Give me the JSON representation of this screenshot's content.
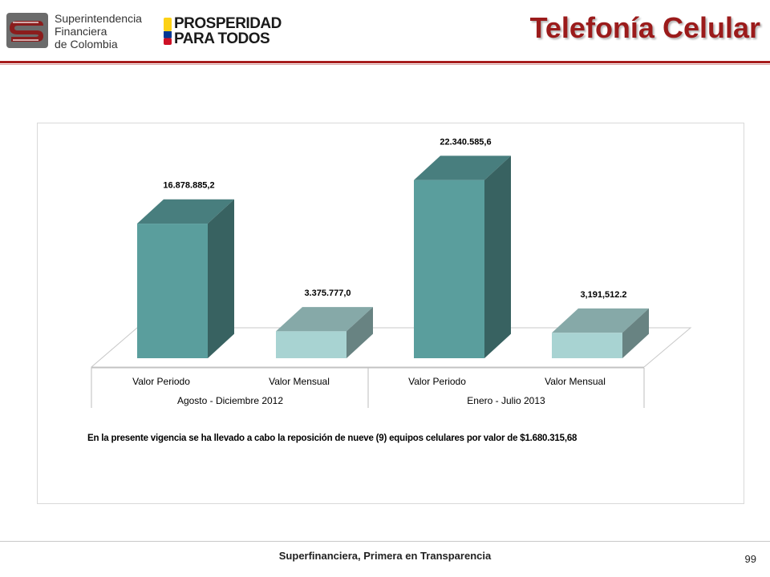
{
  "header": {
    "logo_superintendencia": {
      "lines": [
        "Superintendencia",
        "Financiera",
        "de Colombia"
      ]
    },
    "logo_prosperidad": {
      "line1": "PROSPERIDAD",
      "line2": "PARA TODOS",
      "flag_colors": [
        "#fcd116",
        "#003893",
        "#ce1126"
      ]
    },
    "title": "Telefonía Celular",
    "title_color": "#9b1b1b",
    "rule_color": "#a71d1d"
  },
  "chart_data": {
    "type": "bar",
    "style": "3d-clustered-columns",
    "groups": [
      "Agosto - Diciembre 2012",
      "Enero  - Julio 2013"
    ],
    "categories": [
      "Valor Periodo",
      "Valor Mensual",
      "Valor Periodo",
      "Valor Mensual"
    ],
    "values": [
      16878885.2,
      3375777.0,
      22340585.6,
      3191512.2
    ],
    "data_labels": [
      "16.878.885,2",
      "3.375.777,0",
      "22.340.585,6",
      "3,191,512.2"
    ],
    "colors": [
      "#5a9e9d",
      "#a8d3d2",
      "#5a9e9d",
      "#a8d3d2"
    ],
    "grid": false,
    "legend": "none"
  },
  "note": "En la presente vigencia se ha llevado a cabo la reposición de  nueve (9)  equipos celulares por valor de $1.680.315,68",
  "footer": {
    "tagline": "Superfinanciera, Primera en Transparencia",
    "page_number": "99"
  }
}
